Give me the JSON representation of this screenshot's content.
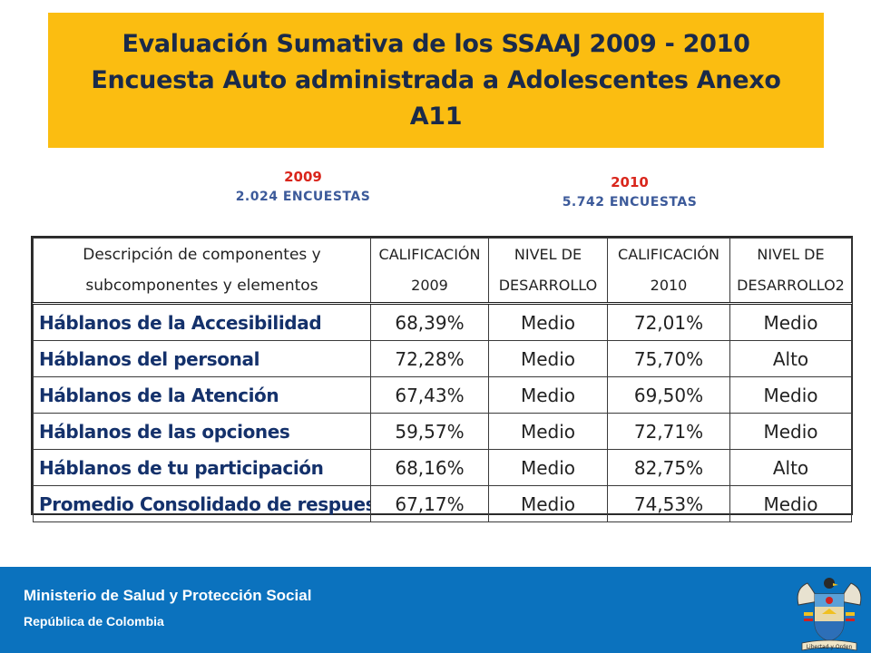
{
  "title": {
    "line1": "Evaluación Sumativa de los SSAAJ 2009 - 2010",
    "line2": "Encuesta Auto administrada a Adolescentes Anexo",
    "line3": "A11"
  },
  "survey_2009": {
    "year": "2009",
    "count": "2.024 ENCUESTAS"
  },
  "survey_2010": {
    "year": "2010",
    "count": "5.742 ENCUESTAS"
  },
  "table": {
    "headers": [
      {
        "line1": "Descripción de componentes y",
        "line2": "subcomponentes y elementos"
      },
      {
        "line1": "CALIFICACIÓN",
        "line2": "2009"
      },
      {
        "line1": "NIVEL DE",
        "line2": "DESARROLLO"
      },
      {
        "line1": "CALIFICACIÓN",
        "line2": "2010"
      },
      {
        "line1": "NIVEL DE",
        "line2": "DESARROLLO2"
      }
    ],
    "rows": [
      {
        "name": "Háblanos de la Accesibilidad",
        "cal2009": "68,39%",
        "nivel2009": "Medio",
        "cal2010": "72,01%",
        "nivel2010": "Medio"
      },
      {
        "name": "Háblanos del personal",
        "cal2009": "72,28%",
        "nivel2009": "Medio",
        "cal2010": "75,70%",
        "nivel2010": "Alto"
      },
      {
        "name": "Háblanos de la Atención",
        "cal2009": "67,43%",
        "nivel2009": "Medio",
        "cal2010": "69,50%",
        "nivel2010": "Medio"
      },
      {
        "name": "Háblanos de las opciones",
        "cal2009": "59,57%",
        "nivel2009": "Medio",
        "cal2010": "72,71%",
        "nivel2010": "Medio"
      },
      {
        "name": "Háblanos de tu participación",
        "cal2009": "68,16%",
        "nivel2009": "Medio",
        "cal2010": "82,75%",
        "nivel2010": "Alto"
      },
      {
        "name": "Promedio Consolidado de respuesta",
        "cal2009": "67,17%",
        "nivel2009": "Medio",
        "cal2010": "74,53%",
        "nivel2010": "Medio"
      }
    ]
  },
  "footer": {
    "ministry": "Ministerio de Salud y Protección Social",
    "republic": "República de Colombia",
    "coat_of_arms_icon": "colombia-coat-of-arms-icon",
    "motto": "Libertad y Orden",
    "background_color": "#0b72be"
  },
  "colors": {
    "title_background": "#fbbd11",
    "year_red": "#d9261c",
    "count_blue": "#3c5a9a",
    "row_name_blue": "#14316b"
  }
}
